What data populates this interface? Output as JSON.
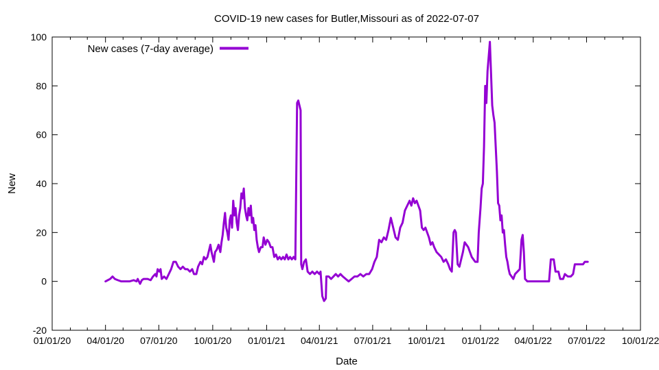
{
  "chart_data": {
    "type": "line",
    "title": "COVID-19 new cases for Butler,Missouri as of 2022-07-07",
    "xlabel": "Date",
    "ylabel": "New",
    "xlim": [
      "2020-01-01",
      "2022-10-01"
    ],
    "ylim": [
      -20,
      100
    ],
    "x_ticks": [
      "01/01/20",
      "04/01/20",
      "07/01/20",
      "10/01/20",
      "01/01/21",
      "04/01/21",
      "07/01/21",
      "10/01/21",
      "01/01/22",
      "04/01/22",
      "07/01/22",
      "10/01/22"
    ],
    "x_tick_dates": [
      "2020-01-01",
      "2020-04-01",
      "2020-07-01",
      "2020-10-01",
      "2021-01-01",
      "2021-04-01",
      "2021-07-01",
      "2021-10-01",
      "2022-01-01",
      "2022-04-01",
      "2022-07-01",
      "2022-10-01"
    ],
    "y_ticks": [
      -20,
      0,
      20,
      40,
      60,
      80,
      100
    ],
    "legend_position": "top-left",
    "series": [
      {
        "name": "New cases (7-day average)",
        "color": "#9400d3",
        "points": [
          [
            "2020-04-01",
            0
          ],
          [
            "2020-04-05",
            0.5
          ],
          [
            "2020-04-09",
            1
          ],
          [
            "2020-04-13",
            2
          ],
          [
            "2020-04-17",
            1
          ],
          [
            "2020-04-22",
            0.5
          ],
          [
            "2020-04-28",
            0
          ],
          [
            "2020-05-05",
            0
          ],
          [
            "2020-05-12",
            0
          ],
          [
            "2020-05-19",
            0.5
          ],
          [
            "2020-05-24",
            0
          ],
          [
            "2020-05-26",
            1
          ],
          [
            "2020-05-30",
            -1
          ],
          [
            "2020-06-02",
            0.5
          ],
          [
            "2020-06-05",
            1
          ],
          [
            "2020-06-12",
            1
          ],
          [
            "2020-06-17",
            0.5
          ],
          [
            "2020-06-21",
            2
          ],
          [
            "2020-06-25",
            3
          ],
          [
            "2020-06-27",
            2
          ],
          [
            "2020-06-29",
            5
          ],
          [
            "2020-07-02",
            4
          ],
          [
            "2020-07-04",
            5
          ],
          [
            "2020-07-06",
            1
          ],
          [
            "2020-07-10",
            2
          ],
          [
            "2020-07-14",
            1
          ],
          [
            "2020-07-18",
            3
          ],
          [
            "2020-07-22",
            5
          ],
          [
            "2020-07-26",
            8
          ],
          [
            "2020-07-30",
            8
          ],
          [
            "2020-08-03",
            6
          ],
          [
            "2020-08-07",
            5
          ],
          [
            "2020-08-11",
            6
          ],
          [
            "2020-08-15",
            5
          ],
          [
            "2020-08-19",
            5
          ],
          [
            "2020-08-23",
            4
          ],
          [
            "2020-08-27",
            5
          ],
          [
            "2020-08-30",
            3
          ],
          [
            "2020-09-03",
            3
          ],
          [
            "2020-09-06",
            6
          ],
          [
            "2020-09-10",
            8
          ],
          [
            "2020-09-13",
            7
          ],
          [
            "2020-09-16",
            10
          ],
          [
            "2020-09-19",
            9
          ],
          [
            "2020-09-22",
            10
          ],
          [
            "2020-09-25",
            13
          ],
          [
            "2020-09-27",
            15
          ],
          [
            "2020-09-29",
            12
          ],
          [
            "2020-10-01",
            10
          ],
          [
            "2020-10-03",
            8
          ],
          [
            "2020-10-05",
            12
          ],
          [
            "2020-10-08",
            13
          ],
          [
            "2020-10-11",
            15
          ],
          [
            "2020-10-14",
            12
          ],
          [
            "2020-10-16",
            16
          ],
          [
            "2020-10-18",
            19
          ],
          [
            "2020-10-20",
            24
          ],
          [
            "2020-10-22",
            28
          ],
          [
            "2020-10-24",
            22
          ],
          [
            "2020-10-26",
            20
          ],
          [
            "2020-10-28",
            17
          ],
          [
            "2020-10-30",
            25
          ],
          [
            "2020-11-01",
            27
          ],
          [
            "2020-11-03",
            22
          ],
          [
            "2020-11-05",
            33
          ],
          [
            "2020-11-07",
            27
          ],
          [
            "2020-11-09",
            30
          ],
          [
            "2020-11-11",
            24
          ],
          [
            "2020-11-13",
            21
          ],
          [
            "2020-11-15",
            27
          ],
          [
            "2020-11-17",
            30
          ],
          [
            "2020-11-19",
            36
          ],
          [
            "2020-11-21",
            34
          ],
          [
            "2020-11-23",
            38
          ],
          [
            "2020-11-25",
            30
          ],
          [
            "2020-11-27",
            27
          ],
          [
            "2020-11-29",
            25
          ],
          [
            "2020-12-01",
            30
          ],
          [
            "2020-12-03",
            27
          ],
          [
            "2020-12-05",
            31
          ],
          [
            "2020-12-07",
            24
          ],
          [
            "2020-12-09",
            26
          ],
          [
            "2020-12-11",
            21
          ],
          [
            "2020-12-13",
            23
          ],
          [
            "2020-12-15",
            17
          ],
          [
            "2020-12-17",
            14
          ],
          [
            "2020-12-19",
            12
          ],
          [
            "2020-12-22",
            14
          ],
          [
            "2020-12-25",
            14
          ],
          [
            "2020-12-27",
            18
          ],
          [
            "2020-12-30",
            15
          ],
          [
            "2021-01-02",
            17
          ],
          [
            "2021-01-05",
            16
          ],
          [
            "2021-01-08",
            14
          ],
          [
            "2021-01-11",
            14
          ],
          [
            "2021-01-14",
            10
          ],
          [
            "2021-01-17",
            11
          ],
          [
            "2021-01-20",
            9
          ],
          [
            "2021-01-23",
            10
          ],
          [
            "2021-01-26",
            9
          ],
          [
            "2021-01-29",
            10
          ],
          [
            "2021-02-01",
            9
          ],
          [
            "2021-02-04",
            11
          ],
          [
            "2021-02-07",
            9
          ],
          [
            "2021-02-10",
            10
          ],
          [
            "2021-02-13",
            9
          ],
          [
            "2021-02-16",
            10
          ],
          [
            "2021-02-19",
            9
          ],
          [
            "2021-02-22",
            73
          ],
          [
            "2021-02-24",
            74
          ],
          [
            "2021-02-26",
            72
          ],
          [
            "2021-02-28",
            70
          ],
          [
            "2021-03-01",
            7
          ],
          [
            "2021-03-03",
            5
          ],
          [
            "2021-03-06",
            8
          ],
          [
            "2021-03-09",
            9
          ],
          [
            "2021-03-12",
            4
          ],
          [
            "2021-03-16",
            3
          ],
          [
            "2021-03-20",
            4
          ],
          [
            "2021-03-24",
            3
          ],
          [
            "2021-03-28",
            4
          ],
          [
            "2021-04-01",
            3
          ],
          [
            "2021-04-03",
            4
          ],
          [
            "2021-04-06",
            -6
          ],
          [
            "2021-04-09",
            -8
          ],
          [
            "2021-04-12",
            -7
          ],
          [
            "2021-04-13",
            2
          ],
          [
            "2021-04-17",
            2
          ],
          [
            "2021-04-21",
            1
          ],
          [
            "2021-04-25",
            2
          ],
          [
            "2021-04-29",
            3
          ],
          [
            "2021-05-03",
            2
          ],
          [
            "2021-05-07",
            3
          ],
          [
            "2021-05-11",
            2
          ],
          [
            "2021-05-16",
            1
          ],
          [
            "2021-05-21",
            0
          ],
          [
            "2021-05-26",
            1
          ],
          [
            "2021-05-31",
            2
          ],
          [
            "2021-06-05",
            2
          ],
          [
            "2021-06-10",
            3
          ],
          [
            "2021-06-15",
            2
          ],
          [
            "2021-06-20",
            3
          ],
          [
            "2021-06-25",
            3
          ],
          [
            "2021-06-30",
            5
          ],
          [
            "2021-07-04",
            8
          ],
          [
            "2021-07-08",
            10
          ],
          [
            "2021-07-12",
            17
          ],
          [
            "2021-07-16",
            16
          ],
          [
            "2021-07-20",
            18
          ],
          [
            "2021-07-24",
            17
          ],
          [
            "2021-07-28",
            21
          ],
          [
            "2021-08-01",
            26
          ],
          [
            "2021-08-05",
            22
          ],
          [
            "2021-08-09",
            18
          ],
          [
            "2021-08-13",
            17
          ],
          [
            "2021-08-17",
            22
          ],
          [
            "2021-08-21",
            24
          ],
          [
            "2021-08-25",
            29
          ],
          [
            "2021-08-29",
            31
          ],
          [
            "2021-09-02",
            33
          ],
          [
            "2021-09-05",
            31
          ],
          [
            "2021-09-08",
            34
          ],
          [
            "2021-09-11",
            32
          ],
          [
            "2021-09-14",
            33
          ],
          [
            "2021-09-17",
            31
          ],
          [
            "2021-09-20",
            29
          ],
          [
            "2021-09-23",
            22
          ],
          [
            "2021-09-26",
            21
          ],
          [
            "2021-09-29",
            22
          ],
          [
            "2021-10-02",
            20
          ],
          [
            "2021-10-05",
            18
          ],
          [
            "2021-10-08",
            15
          ],
          [
            "2021-10-11",
            16
          ],
          [
            "2021-10-14",
            14
          ],
          [
            "2021-10-18",
            12
          ],
          [
            "2021-10-22",
            11
          ],
          [
            "2021-10-26",
            10
          ],
          [
            "2021-10-30",
            8
          ],
          [
            "2021-11-03",
            9
          ],
          [
            "2021-11-07",
            7
          ],
          [
            "2021-11-10",
            5
          ],
          [
            "2021-11-13",
            4
          ],
          [
            "2021-11-16",
            20
          ],
          [
            "2021-11-18",
            21
          ],
          [
            "2021-11-20",
            20
          ],
          [
            "2021-11-23",
            7
          ],
          [
            "2021-11-26",
            6
          ],
          [
            "2021-11-29",
            9
          ],
          [
            "2021-12-02",
            12
          ],
          [
            "2021-12-05",
            16
          ],
          [
            "2021-12-08",
            15
          ],
          [
            "2021-12-11",
            14
          ],
          [
            "2021-12-14",
            12
          ],
          [
            "2021-12-17",
            10
          ],
          [
            "2021-12-20",
            9
          ],
          [
            "2021-12-23",
            8
          ],
          [
            "2021-12-27",
            8
          ],
          [
            "2021-12-29",
            20
          ],
          [
            "2022-01-01",
            30
          ],
          [
            "2022-01-03",
            38
          ],
          [
            "2022-01-05",
            40
          ],
          [
            "2022-01-07",
            55
          ],
          [
            "2022-01-09",
            80
          ],
          [
            "2022-01-11",
            73
          ],
          [
            "2022-01-13",
            86
          ],
          [
            "2022-01-15",
            92
          ],
          [
            "2022-01-17",
            98
          ],
          [
            "2022-01-19",
            85
          ],
          [
            "2022-01-21",
            72
          ],
          [
            "2022-01-23",
            68
          ],
          [
            "2022-01-25",
            65
          ],
          [
            "2022-01-27",
            55
          ],
          [
            "2022-01-29",
            45
          ],
          [
            "2022-01-31",
            32
          ],
          [
            "2022-02-02",
            31
          ],
          [
            "2022-02-04",
            25
          ],
          [
            "2022-02-06",
            27
          ],
          [
            "2022-02-08",
            20
          ],
          [
            "2022-02-10",
            21
          ],
          [
            "2022-02-12",
            15
          ],
          [
            "2022-02-14",
            10
          ],
          [
            "2022-02-16",
            8
          ],
          [
            "2022-02-18",
            5
          ],
          [
            "2022-02-20",
            3
          ],
          [
            "2022-02-23",
            2
          ],
          [
            "2022-02-26",
            1
          ],
          [
            "2022-03-01",
            3
          ],
          [
            "2022-03-05",
            4
          ],
          [
            "2022-03-09",
            5
          ],
          [
            "2022-03-12",
            17
          ],
          [
            "2022-03-14",
            19
          ],
          [
            "2022-03-16",
            12
          ],
          [
            "2022-03-18",
            1
          ],
          [
            "2022-03-22",
            0
          ],
          [
            "2022-04-01",
            0
          ],
          [
            "2022-04-15",
            0
          ],
          [
            "2022-04-28",
            0
          ],
          [
            "2022-05-01",
            9
          ],
          [
            "2022-05-06",
            9
          ],
          [
            "2022-05-09",
            4
          ],
          [
            "2022-05-14",
            4
          ],
          [
            "2022-05-17",
            1
          ],
          [
            "2022-05-22",
            1
          ],
          [
            "2022-05-25",
            3
          ],
          [
            "2022-05-30",
            2
          ],
          [
            "2022-06-04",
            2
          ],
          [
            "2022-06-08",
            3
          ],
          [
            "2022-06-11",
            7
          ],
          [
            "2022-06-18",
            7
          ],
          [
            "2022-06-25",
            7
          ],
          [
            "2022-06-28",
            8
          ],
          [
            "2022-07-03",
            8
          ]
        ]
      }
    ]
  }
}
